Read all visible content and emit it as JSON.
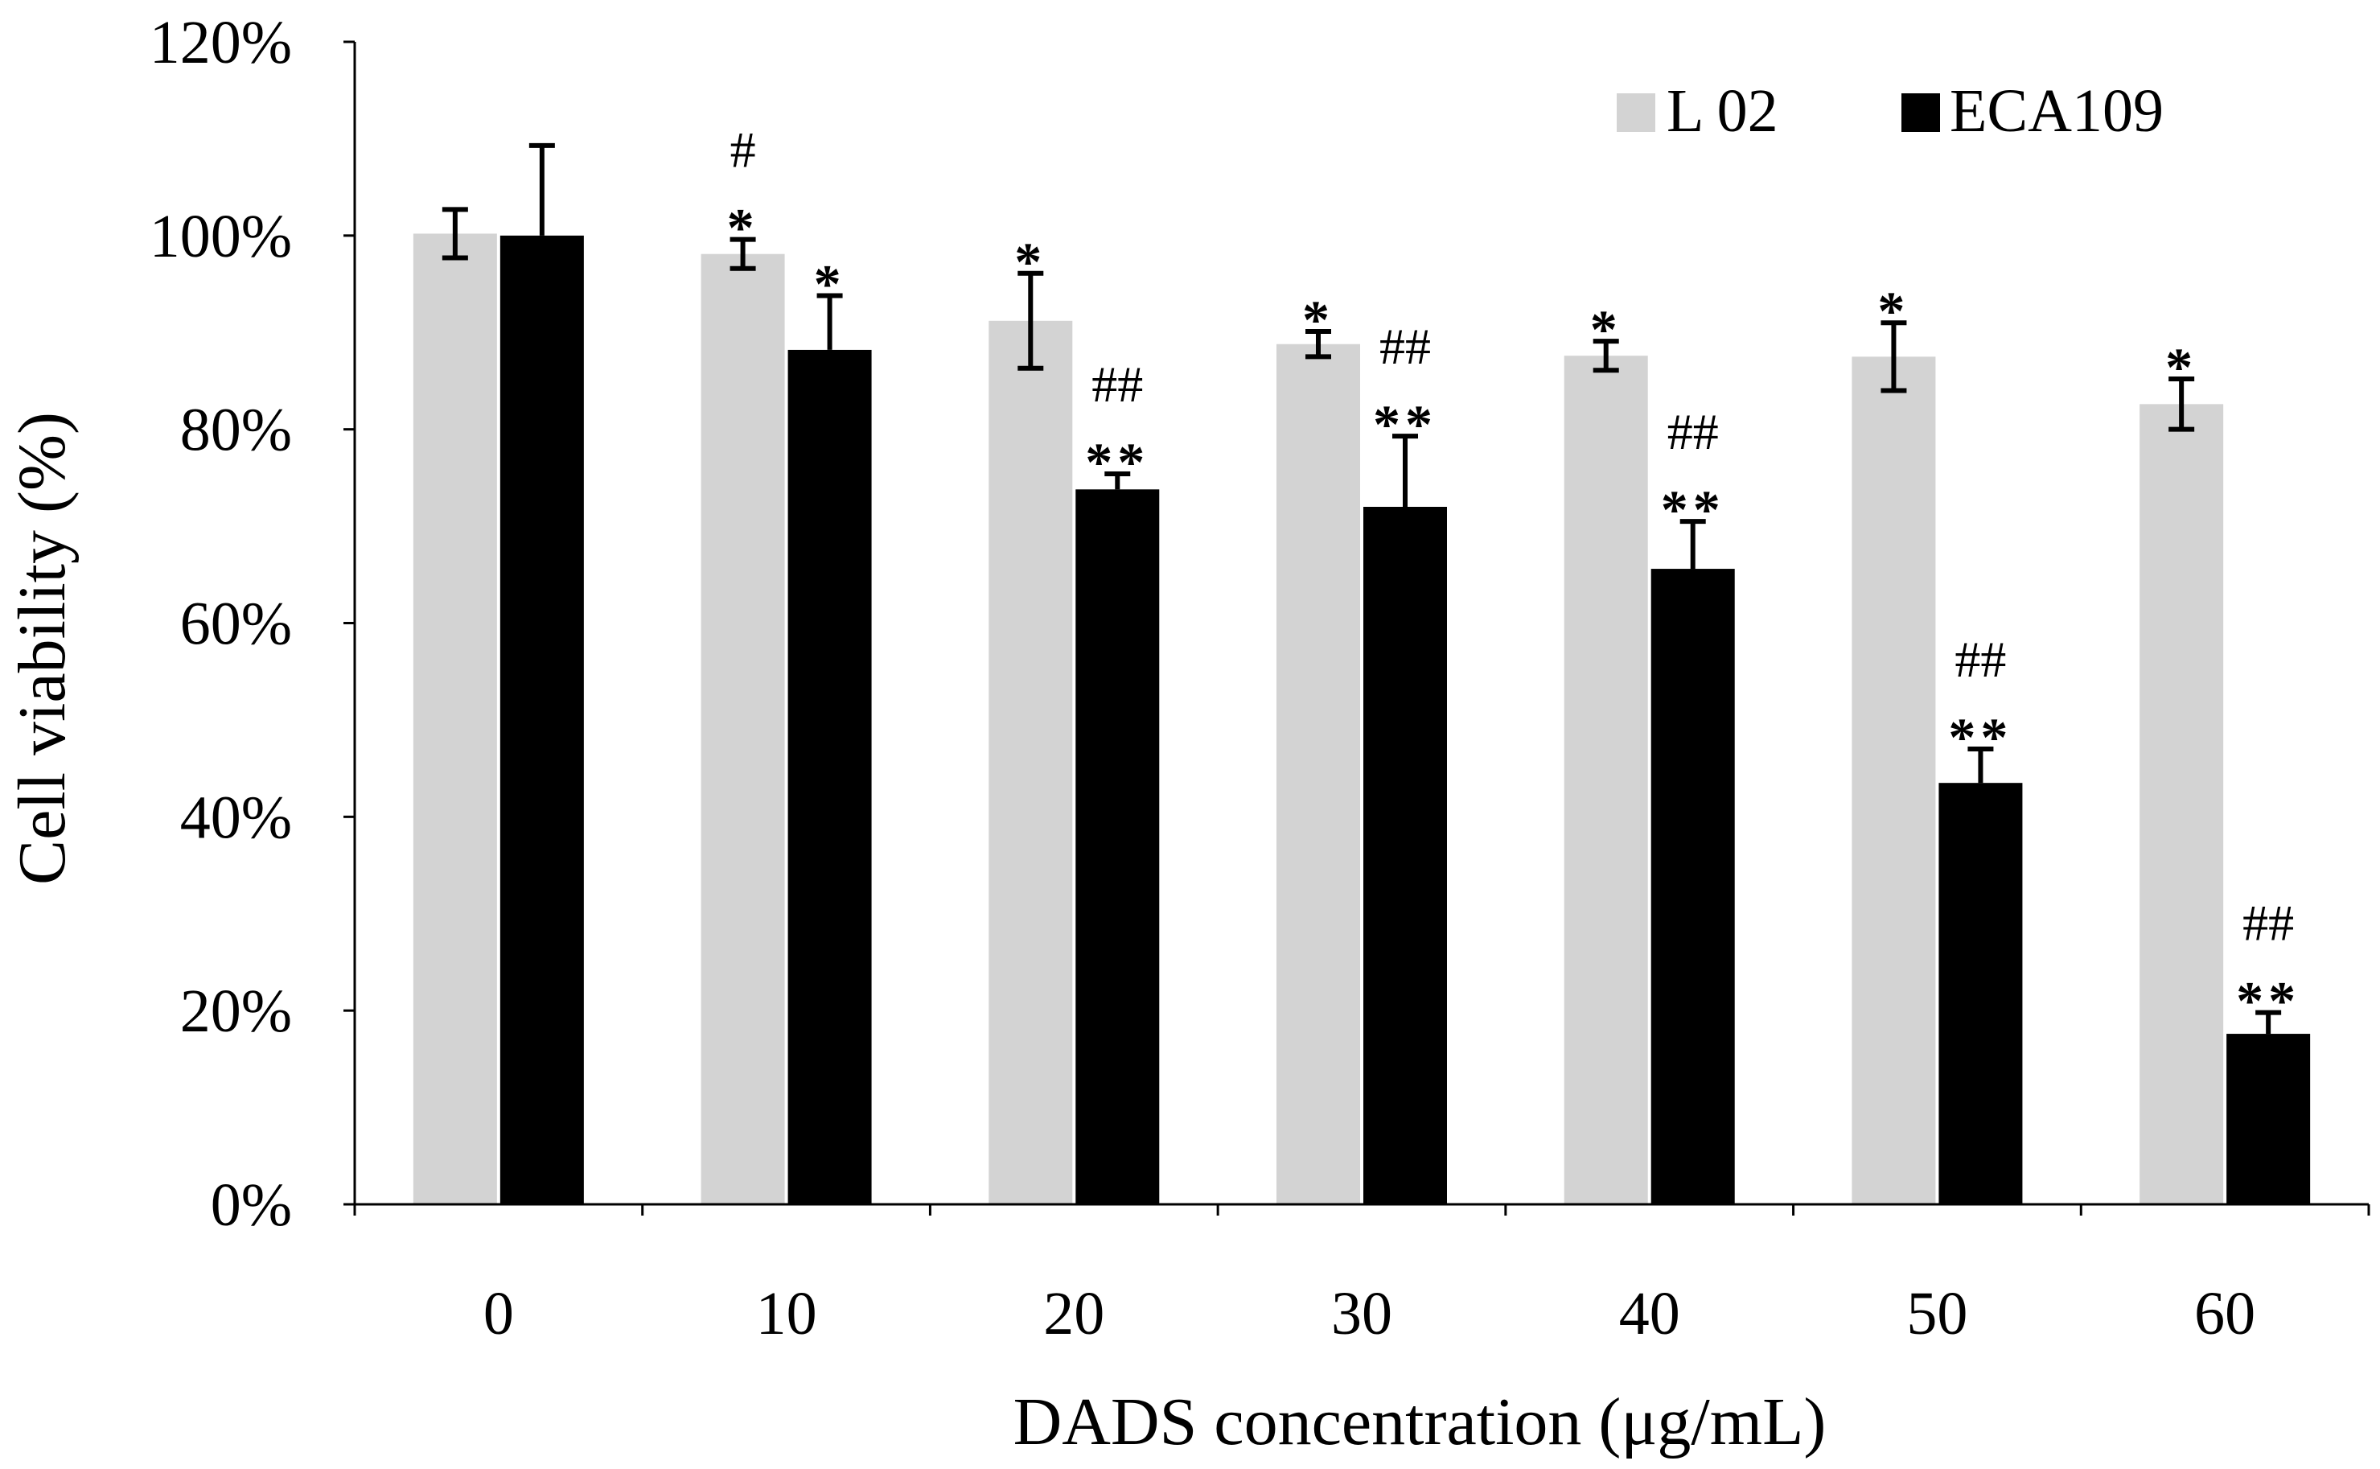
{
  "chart_data": {
    "type": "bar",
    "title": "",
    "xlabel": "DADS concentration  (μg/mL)",
    "ylabel": "Cell viability (%)",
    "categories": [
      "0",
      "10",
      "20",
      "30",
      "40",
      "50",
      "60"
    ],
    "ylim": [
      0,
      120
    ],
    "yticks": [
      0,
      20,
      40,
      60,
      80,
      100,
      120
    ],
    "ytick_labels": [
      "0%",
      "20%",
      "40%",
      "60%",
      "80%",
      "100%",
      "120%"
    ],
    "grid": false,
    "legend_position": "top-right",
    "series": [
      {
        "name": "L 02",
        "color": "#d3d3d3",
        "values": [
          100.2,
          98.1,
          91.2,
          88.8,
          87.6,
          87.5,
          82.6
        ],
        "errors": [
          2.5,
          1.5,
          4.9,
          1.3,
          1.5,
          3.5,
          2.6
        ],
        "annotations": [
          [],
          [
            "#",
            "*"
          ],
          [
            "*"
          ],
          [
            "*"
          ],
          [
            "*"
          ],
          [
            "*"
          ],
          [
            "*"
          ]
        ]
      },
      {
        "name": "ECA109",
        "color": "#000000",
        "values": [
          100.0,
          88.2,
          73.8,
          72.0,
          65.6,
          43.5,
          17.6
        ],
        "errors": [
          9.3,
          5.6,
          1.6,
          7.3,
          4.9,
          3.5,
          2.2
        ],
        "annotations": [
          [],
          [
            "*"
          ],
          [
            "##",
            "**"
          ],
          [
            "##",
            "**"
          ],
          [
            "##",
            "**"
          ],
          [
            "##",
            "**"
          ],
          [
            "##",
            "**"
          ]
        ]
      }
    ]
  }
}
